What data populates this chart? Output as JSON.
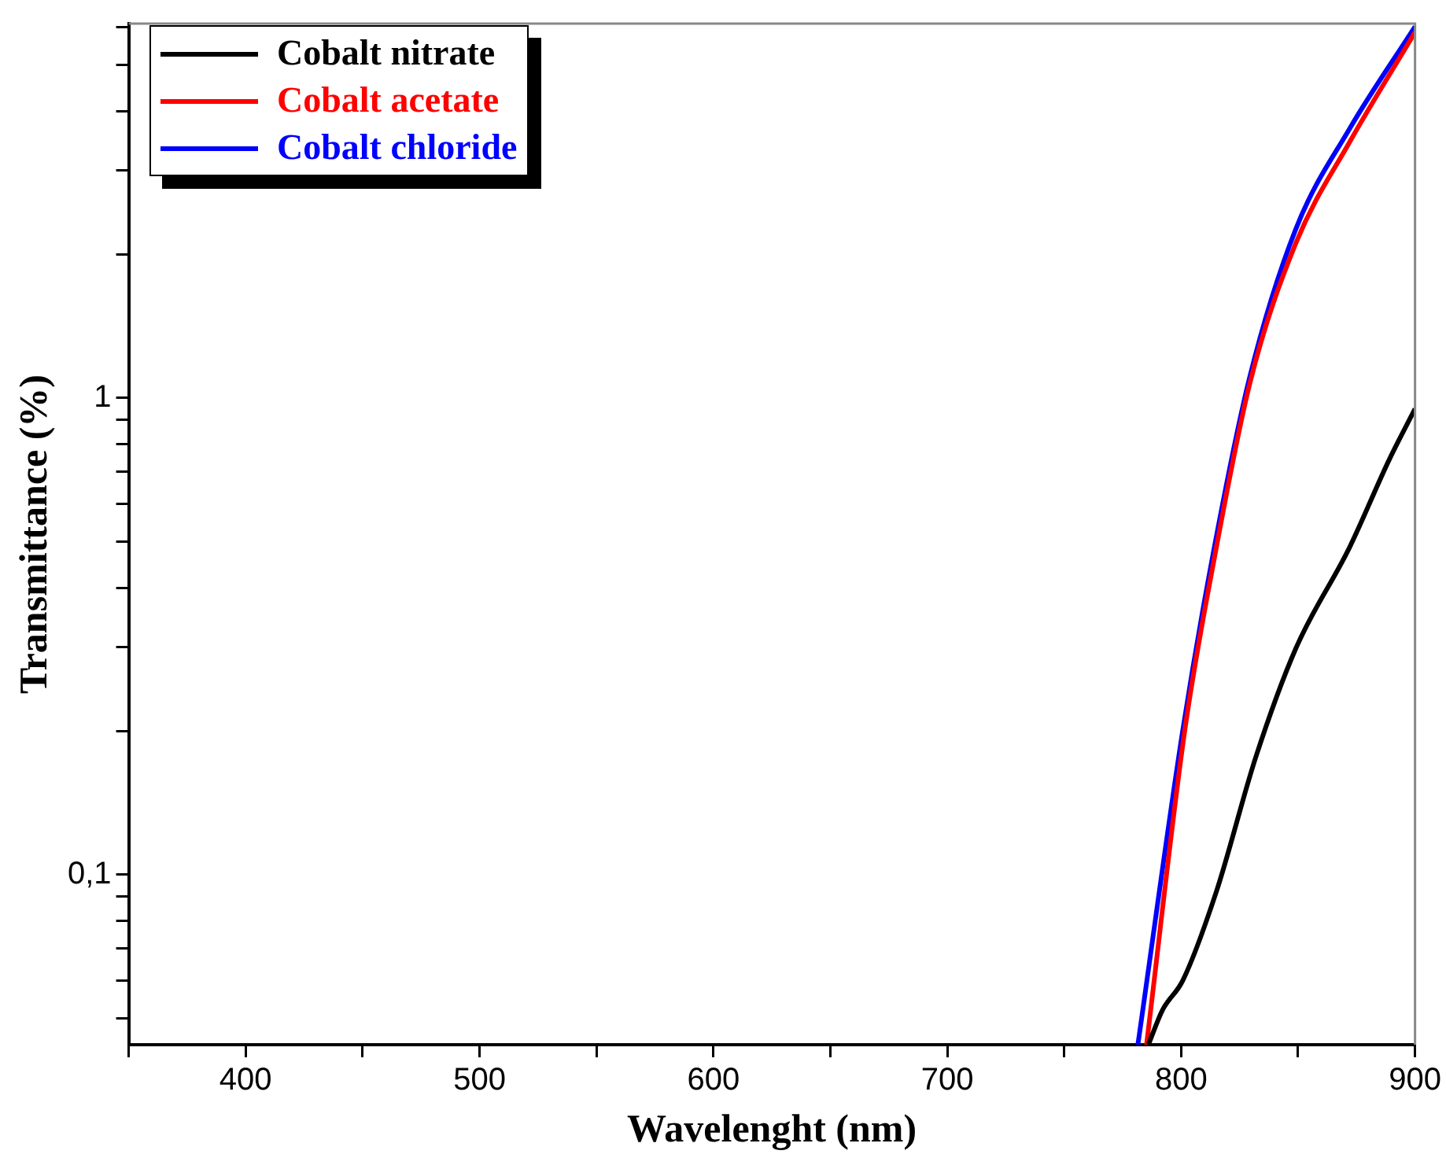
{
  "chart_data": {
    "type": "line",
    "xlabel": "Wavelenght (nm)",
    "ylabel": "Transmittance (%)",
    "log": "y",
    "grid": false,
    "legend": "top left",
    "marker": "none",
    "line_style": "solid",
    "xlim": [
      350,
      900
    ],
    "xticks": [
      {
        "value": 350,
        "label": null
      },
      400,
      {
        "value": 450,
        "label": null
      },
      500,
      {
        "value": 550,
        "label": null
      },
      600,
      {
        "value": 650,
        "label": null
      },
      700,
      {
        "value": 750,
        "label": null
      },
      800,
      {
        "value": 850,
        "label": null
      },
      900
    ],
    "ylim": [
      0.044,
      6.1
    ],
    "yticks": [
      {
        "value": 0.05,
        "label": null
      },
      {
        "value": 0.06,
        "label": null
      },
      {
        "value": 0.07,
        "label": null
      },
      {
        "value": 0.08,
        "label": null
      },
      {
        "value": 0.09,
        "label": null
      },
      {
        "value": 0.1,
        "label": "0,1"
      },
      {
        "value": 0.2,
        "label": null
      },
      {
        "value": 0.3,
        "label": null
      },
      {
        "value": 0.4,
        "label": null
      },
      {
        "value": 0.5,
        "label": null
      },
      {
        "value": 0.6,
        "label": null
      },
      {
        "value": 0.7,
        "label": null
      },
      {
        "value": 0.8,
        "label": null
      },
      {
        "value": 0.9,
        "label": null
      },
      {
        "value": 1,
        "label": "1"
      },
      {
        "value": 2,
        "label": null
      },
      {
        "value": 3,
        "label": null
      },
      {
        "value": 4,
        "label": null
      },
      {
        "value": 5,
        "label": null
      },
      {
        "value": 6,
        "label": null
      }
    ],
    "series": [
      {
        "name": "Cobalt nitrate",
        "color": "#000000",
        "x": [
          786,
          792,
          800.7,
          815,
          832,
          849,
          872,
          889,
          900
        ],
        "values": [
          0.044,
          0.052,
          0.06,
          0.092,
          0.177,
          0.298,
          0.486,
          0.743,
          0.949
        ]
      },
      {
        "name": "Cobalt acetate",
        "color": "#ff0000",
        "x": [
          785.2,
          801.5,
          814.5,
          829.5,
          849,
          872,
          900
        ],
        "values": [
          0.044,
          0.2,
          0.47,
          1.08,
          2.11,
          3.44,
          5.85
        ]
      },
      {
        "name": "Cobalt chloride",
        "color": "#0000ff",
        "x": [
          781.5,
          800.7,
          813.7,
          829.2,
          849,
          872,
          900
        ],
        "values": [
          0.044,
          0.201,
          0.472,
          1.1,
          2.26,
          3.67,
          6.01
        ]
      }
    ]
  }
}
